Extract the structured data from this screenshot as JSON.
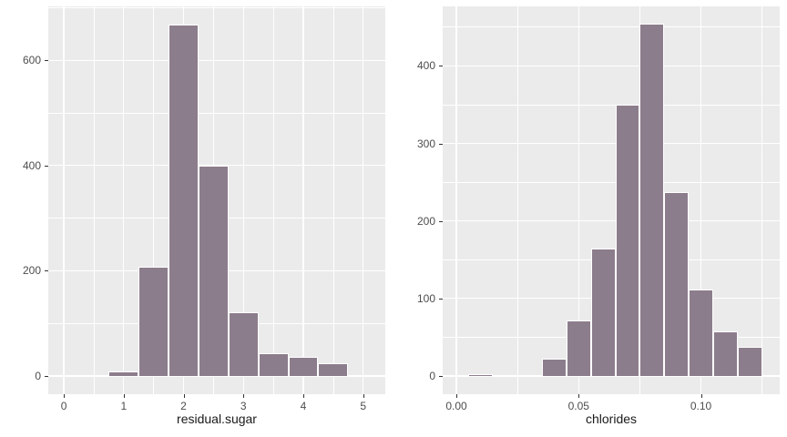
{
  "style": {
    "background": "#FFFFFF",
    "panel_bg": "#EBEBEB",
    "grid_major": "#FFFFFF",
    "grid_minor": "#FFFFFF",
    "bar_fill": "#8C7D8C",
    "bar_stroke": "#FFFFFF",
    "tick_color": "#333333",
    "tick_label_color": "#4D4D4D",
    "axis_title_color": "#1a1a1a"
  },
  "chart_data": [
    {
      "type": "bar",
      "subtype": "histogram",
      "title": "",
      "xlabel": "residual.sugar",
      "ylabel": "",
      "legend": false,
      "grid": true,
      "bin_width": 0.5,
      "x": [
        1.0,
        1.5,
        2.0,
        2.5,
        3.0,
        3.5,
        4.0,
        4.5
      ],
      "values": [
        8,
        208,
        668,
        400,
        122,
        44,
        37,
        25
      ],
      "xlim": [
        -0.26,
        5.37
      ],
      "ylim": [
        -34.6,
        702.6
      ],
      "x_tick_values": [
        0,
        1,
        2,
        3,
        4,
        5
      ],
      "x_tick_labels": [
        "0",
        "1",
        "2",
        "3",
        "4",
        "5"
      ],
      "y_tick_values": [
        0,
        200,
        400,
        600
      ],
      "y_tick_labels": [
        "0",
        "200",
        "400",
        "600"
      ],
      "x_minor_values": [
        0.5,
        1.5,
        2.5,
        3.5,
        4.5
      ],
      "y_minor_values": [
        100,
        300,
        500,
        700
      ]
    },
    {
      "type": "bar",
      "subtype": "histogram",
      "title": "",
      "xlabel": "chlorides",
      "ylabel": "",
      "legend": false,
      "grid": true,
      "bin_width": 0.01,
      "x": [
        0.01,
        0.02,
        0.03,
        0.04,
        0.05,
        0.06,
        0.07,
        0.08,
        0.09,
        0.1,
        0.11,
        0.12
      ],
      "values": [
        2,
        0,
        0,
        22,
        72,
        165,
        350,
        454,
        237,
        112,
        58,
        38
      ],
      "xlim": [
        -0.0056,
        0.1322
      ],
      "ylim": [
        -23.4,
        476.7
      ],
      "x_tick_values": [
        0,
        0.05,
        0.1
      ],
      "x_tick_labels": [
        "0.00",
        "0.05",
        "0.10"
      ],
      "y_tick_values": [
        0,
        100,
        200,
        300,
        400
      ],
      "y_tick_labels": [
        "0",
        "100",
        "200",
        "300",
        "400"
      ],
      "x_minor_values": [
        0.025,
        0.075,
        0.125
      ],
      "y_minor_values": [
        50,
        150,
        250,
        350,
        450
      ]
    }
  ]
}
